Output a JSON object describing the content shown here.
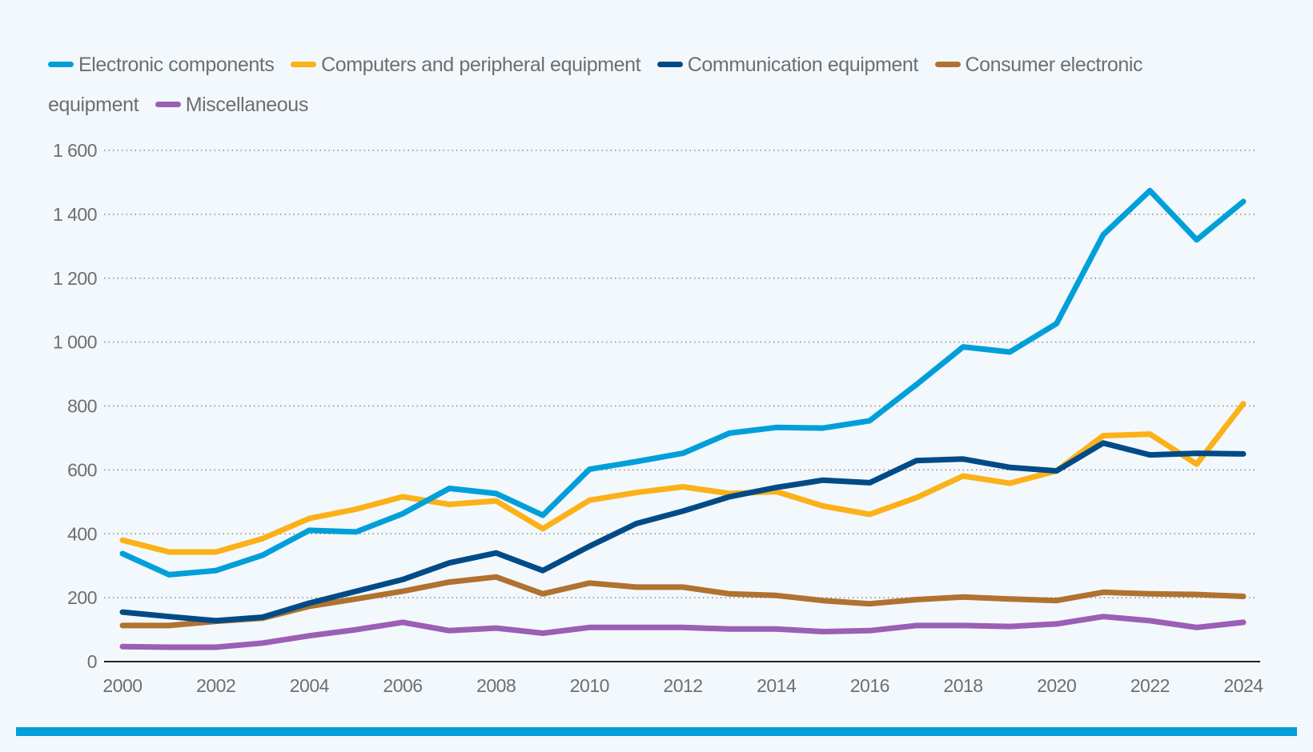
{
  "chart_data": {
    "type": "line",
    "title": "",
    "xlabel": "",
    "ylabel": "",
    "x": [
      2000,
      2001,
      2002,
      2003,
      2004,
      2005,
      2006,
      2007,
      2008,
      2009,
      2010,
      2011,
      2012,
      2013,
      2014,
      2015,
      2016,
      2017,
      2018,
      2019,
      2020,
      2021,
      2022,
      2023,
      2024
    ],
    "xticks": [
      "2000",
      "2002",
      "2004",
      "2006",
      "2008",
      "2010",
      "2012",
      "2014",
      "2016",
      "2018",
      "2020",
      "2022",
      "2024"
    ],
    "yticks": [
      "0",
      "200",
      "400",
      "600",
      "800",
      "1 000",
      "1 200",
      "1 400",
      "1 600"
    ],
    "ylim": [
      0,
      1600
    ],
    "grid": "horizontal dotted",
    "legend_position": "top",
    "series": [
      {
        "name": "Electronic components",
        "color": "#009fda",
        "values": [
          338,
          272,
          285,
          333,
          411,
          406,
          463,
          542,
          526,
          458,
          602,
          626,
          652,
          715,
          733,
          731,
          754,
          867,
          985,
          969,
          1058,
          1336,
          1474,
          1320,
          1440
        ]
      },
      {
        "name": "Computers and peripheral equipment",
        "color": "#fbb117",
        "values": [
          380,
          343,
          343,
          385,
          448,
          477,
          516,
          492,
          503,
          416,
          505,
          529,
          547,
          526,
          532,
          487,
          461,
          513,
          581,
          558,
          597,
          707,
          712,
          618,
          807
        ]
      },
      {
        "name": "Communication equipment",
        "color": "#004b87",
        "values": [
          155,
          141,
          128,
          139,
          183,
          220,
          257,
          309,
          340,
          285,
          361,
          432,
          471,
          516,
          545,
          568,
          560,
          629,
          634,
          608,
          597,
          684,
          647,
          652,
          650
        ]
      },
      {
        "name": "Consumer electronic equipment",
        "color": "#b0722f",
        "values": [
          113,
          113,
          126,
          136,
          173,
          196,
          220,
          249,
          265,
          212,
          246,
          233,
          233,
          212,
          207,
          191,
          181,
          194,
          202,
          196,
          191,
          217,
          212,
          210,
          204
        ]
      },
      {
        "name": "Miscellaneous",
        "color": "#9b5fb5",
        "values": [
          47,
          45,
          45,
          58,
          81,
          100,
          123,
          97,
          105,
          89,
          107,
          107,
          107,
          102,
          102,
          94,
          97,
          113,
          113,
          110,
          118,
          141,
          128,
          107,
          123
        ]
      }
    ]
  }
}
